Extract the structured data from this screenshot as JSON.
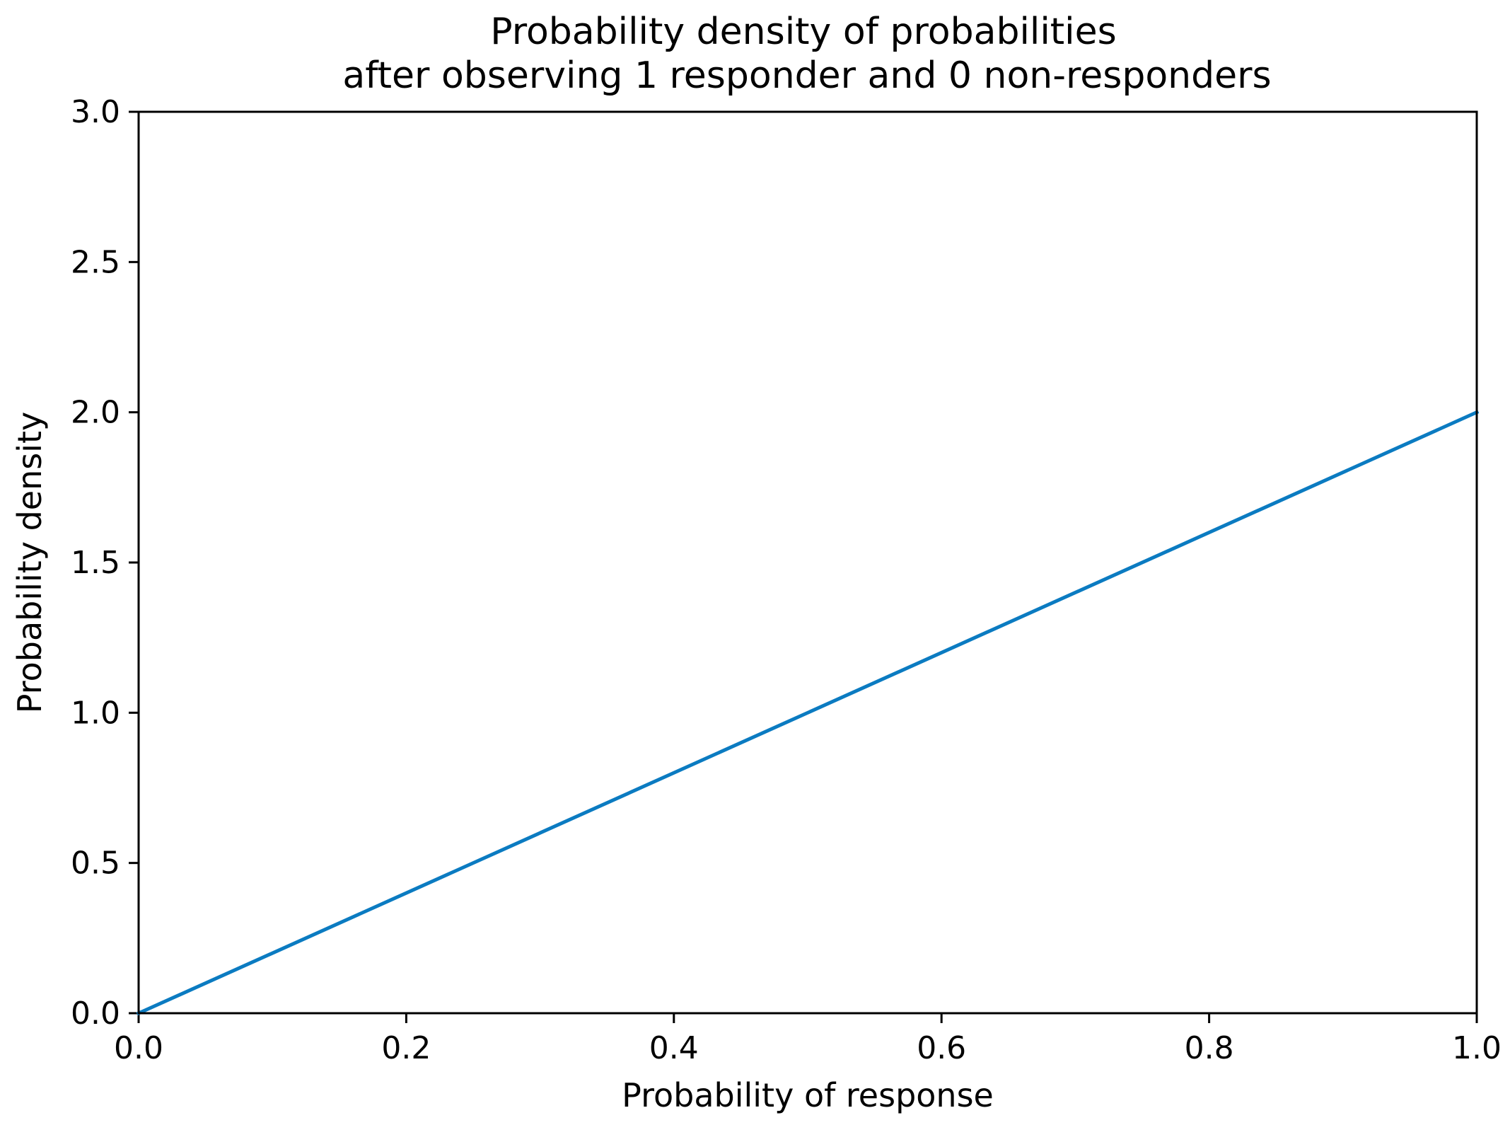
{
  "chart_data": {
    "type": "line",
    "title": [
      "Probability density of probabilities",
      "after observing 1 responder and 0 non-responders"
    ],
    "xlabel": "Probability of response",
    "ylabel": "Probability density",
    "xlim": [
      0.0,
      1.0
    ],
    "ylim": [
      0.0,
      3.0
    ],
    "xticks": [
      "0.0",
      "0.2",
      "0.4",
      "0.6",
      "0.8",
      "1.0"
    ],
    "yticks": [
      "0.0",
      "0.5",
      "1.0",
      "1.5",
      "2.0",
      "2.5",
      "3.0"
    ],
    "grid": false,
    "series": [
      {
        "color": "#0b7bc1",
        "x": [
          0.0,
          1.0
        ],
        "y": [
          0.0,
          2.0
        ]
      }
    ]
  }
}
